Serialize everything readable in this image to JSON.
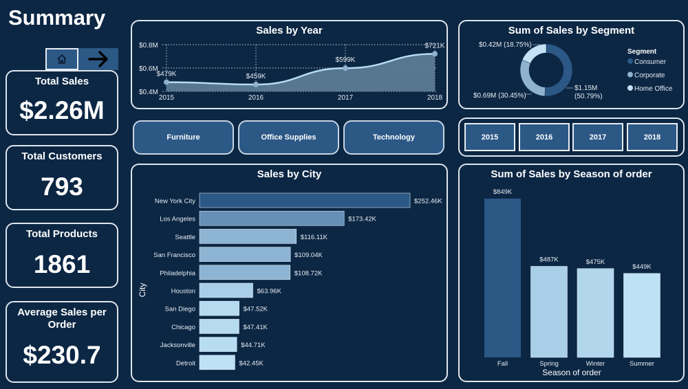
{
  "page": {
    "title": "Summary",
    "nav": {
      "home_icon": "home-icon",
      "next_icon": "arrow-right-icon"
    }
  },
  "kpis": [
    {
      "title": "Total Sales",
      "value": "$2.26M"
    },
    {
      "title": "Total Customers",
      "value": "793"
    },
    {
      "title": "Total Products",
      "value": "1861"
    },
    {
      "title": "Average Sales per Order",
      "value": "$230.7"
    }
  ],
  "category_filters": [
    "Furniture",
    "Office Supplies",
    "Technology"
  ],
  "year_filters": [
    "2015",
    "2016",
    "2017",
    "2018"
  ],
  "colors": {
    "background": "#0c2744",
    "dark_bar": "#2c5886",
    "area_fill": "#5c7a94",
    "line": "#b7dcf2",
    "consumer": "#2c5886",
    "corporate": "#8fb2cf",
    "home_office": "#c3e2f6"
  },
  "chart_data": [
    {
      "id": "sales-by-year",
      "type": "area",
      "title": "Sales by Year",
      "xlabel": "",
      "ylabel": "",
      "x": [
        "2015",
        "2016",
        "2017",
        "2018"
      ],
      "values": [
        479,
        459,
        599,
        721
      ],
      "data_labels": [
        "$479K",
        "$459K",
        "$599K",
        "$721K"
      ],
      "y_ticks": [
        "$0.4M",
        "$0.6M",
        "$0.8M"
      ],
      "y_tick_values": [
        400,
        600,
        800
      ],
      "ylim": [
        400,
        800
      ],
      "unit": "K",
      "grid": true
    },
    {
      "id": "sales-by-segment",
      "type": "pie",
      "title": "Sum of Sales by Segment",
      "legend_title": "Segment",
      "legend_position": "right",
      "categories": [
        "Consumer",
        "Corporate",
        "Home Office"
      ],
      "values": [
        1.15,
        0.69,
        0.42
      ],
      "percents": [
        50.79,
        30.45,
        18.75
      ],
      "data_labels": [
        "$1.15M (50.79%)",
        "$0.69M (30.45%)",
        "$0.42M (18.75%)"
      ],
      "label_lines": [
        [
          "$1.15M",
          "(50.79%)"
        ],
        [
          "$0.69M (30.45%)"
        ],
        [
          "$0.42M (18.75%)"
        ]
      ],
      "donut": true
    },
    {
      "id": "sales-by-city",
      "type": "bar",
      "orientation": "horizontal",
      "title": "Sales by City",
      "xlabel": "",
      "ylabel": "City",
      "categories": [
        "New York City",
        "Los Angeles",
        "Seattle",
        "San Francisco",
        "Philadelphia",
        "Houston",
        "San Diego",
        "Chicago",
        "Jacksonville",
        "Detroit"
      ],
      "values": [
        252.46,
        173.42,
        116.11,
        109.04,
        108.72,
        63.96,
        47.52,
        47.41,
        44.71,
        42.45
      ],
      "data_labels": [
        "$252.46K",
        "$173.42K",
        "$116.11K",
        "$109.04K",
        "$108.72K",
        "$63.96K",
        "$47.52K",
        "$47.41K",
        "$44.71K",
        "$42.45K"
      ],
      "unit": "K"
    },
    {
      "id": "sales-by-season",
      "type": "bar",
      "title": "Sum of Sales by Season of order",
      "xlabel": "Season of order",
      "ylabel": "",
      "categories": [
        "Fall",
        "Spring",
        "Winter",
        "Summer"
      ],
      "values": [
        849,
        487,
        475,
        449
      ],
      "data_labels": [
        "$849K",
        "$487K",
        "$475K",
        "$449K"
      ],
      "unit": "K",
      "ylim": [
        0,
        849
      ]
    }
  ]
}
